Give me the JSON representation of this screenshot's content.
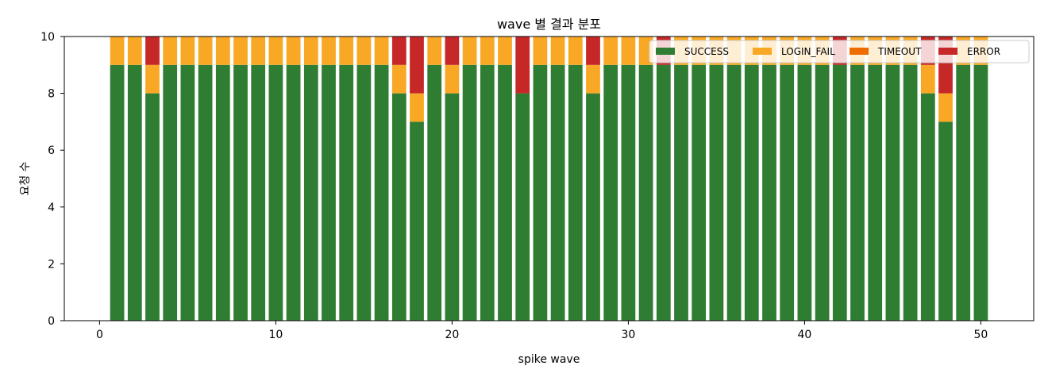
{
  "chart_data": {
    "type": "bar",
    "stacked": true,
    "title": "wave 별 결과 분포",
    "xlabel": "spike wave",
    "ylabel": "요청 수",
    "xlim": [
      -2,
      53
    ],
    "ylim": [
      0,
      10
    ],
    "xticks": [
      0,
      10,
      20,
      30,
      40,
      50
    ],
    "yticks": [
      0,
      2,
      4,
      6,
      8,
      10
    ],
    "grid": false,
    "legend_position": "top-right",
    "x": [
      1,
      2,
      3,
      4,
      5,
      6,
      7,
      8,
      9,
      10,
      11,
      12,
      13,
      14,
      15,
      16,
      17,
      18,
      19,
      20,
      21,
      22,
      23,
      24,
      25,
      26,
      27,
      28,
      29,
      30,
      31,
      32,
      33,
      34,
      35,
      36,
      37,
      38,
      39,
      40,
      41,
      42,
      43,
      44,
      45,
      46,
      47,
      48,
      49,
      50
    ],
    "series": [
      {
        "name": "SUCCESS",
        "color": "#2e7d32",
        "values": [
          9,
          9,
          8,
          9,
          9,
          9,
          9,
          9,
          9,
          9,
          9,
          9,
          9,
          9,
          9,
          9,
          8,
          7,
          9,
          8,
          9,
          9,
          9,
          8,
          9,
          9,
          9,
          8,
          9,
          9,
          9,
          9,
          9,
          9,
          9,
          9,
          9,
          9,
          9,
          9,
          9,
          9,
          9,
          9,
          9,
          9,
          8,
          7,
          9,
          9
        ]
      },
      {
        "name": "LOGIN_FAIL",
        "color": "#f9a825",
        "values": [
          1,
          1,
          1,
          1,
          1,
          1,
          1,
          1,
          1,
          1,
          1,
          1,
          1,
          1,
          1,
          1,
          1,
          1,
          1,
          1,
          1,
          1,
          1,
          0,
          1,
          1,
          1,
          1,
          1,
          1,
          1,
          0,
          1,
          1,
          1,
          1,
          1,
          1,
          1,
          1,
          1,
          0,
          1,
          1,
          1,
          1,
          1,
          1,
          1,
          1
        ]
      },
      {
        "name": "TIMEOUT",
        "color": "#ef6c00",
        "values": [
          0,
          0,
          0,
          0,
          0,
          0,
          0,
          0,
          0,
          0,
          0,
          0,
          0,
          0,
          0,
          0,
          0,
          0,
          0,
          0,
          0,
          0,
          0,
          0,
          0,
          0,
          0,
          0,
          0,
          0,
          0,
          0,
          0,
          0,
          0,
          0,
          0,
          0,
          0,
          0,
          0,
          0,
          0,
          0,
          0,
          0,
          0,
          0,
          0,
          0
        ]
      },
      {
        "name": "ERROR",
        "color": "#c62828",
        "values": [
          0,
          0,
          1,
          0,
          0,
          0,
          0,
          0,
          0,
          0,
          0,
          0,
          0,
          0,
          0,
          0,
          1,
          2,
          0,
          1,
          0,
          0,
          0,
          2,
          0,
          0,
          0,
          1,
          0,
          0,
          0,
          1,
          0,
          0,
          0,
          0,
          0,
          0,
          0,
          0,
          0,
          1,
          0,
          0,
          0,
          0,
          1,
          2,
          0,
          0
        ]
      }
    ]
  }
}
